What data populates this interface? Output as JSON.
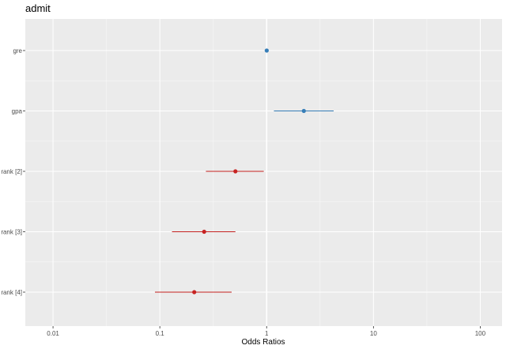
{
  "chart_data": {
    "type": "scatter",
    "title": "admit",
    "xlabel": "Odds Ratios",
    "ylabel": "",
    "x_scale": "log10",
    "xlim": [
      0.0055,
      160
    ],
    "x_ticks": [
      {
        "value": 0.01,
        "label": "0.01"
      },
      {
        "value": 0.1,
        "label": "0.1"
      },
      {
        "value": 1,
        "label": "1"
      },
      {
        "value": 10,
        "label": "10"
      },
      {
        "value": 100,
        "label": "100"
      }
    ],
    "reference_line": 1,
    "grid": true,
    "legend": "none",
    "colors": {
      "positive": "#377eb8",
      "negative": "#c72322"
    },
    "terms": [
      {
        "label": "gre",
        "estimate": 1.002,
        "conf_low": 1.0,
        "conf_high": 1.004,
        "direction": "positive"
      },
      {
        "label": "gpa",
        "estimate": 2.23,
        "conf_low": 1.17,
        "conf_high": 4.24,
        "direction": "positive"
      },
      {
        "label": "rank [2]",
        "estimate": 0.51,
        "conf_low": 0.27,
        "conf_high": 0.94,
        "direction": "negative"
      },
      {
        "label": "rank [3]",
        "estimate": 0.26,
        "conf_low": 0.13,
        "conf_high": 0.51,
        "direction": "negative"
      },
      {
        "label": "rank [4]",
        "estimate": 0.21,
        "conf_low": 0.09,
        "conf_high": 0.47,
        "direction": "negative"
      }
    ]
  }
}
